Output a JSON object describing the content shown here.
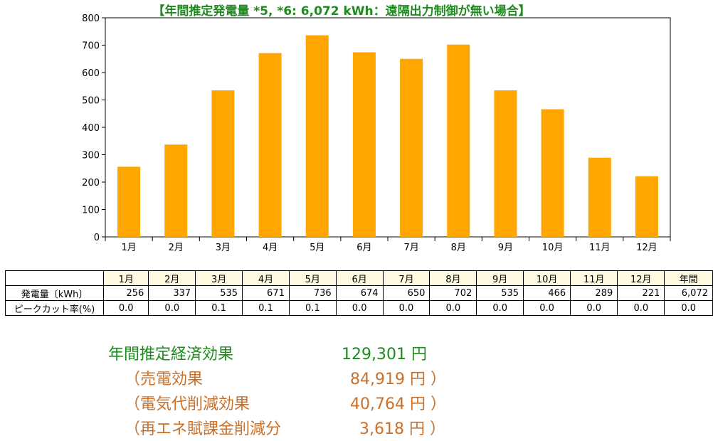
{
  "chart_data": {
    "type": "bar",
    "title": "【年間推定発電量 *5, *6:  6,072 kWh：遠隔出力制御が無い場合】",
    "categories": [
      "1月",
      "2月",
      "3月",
      "4月",
      "5月",
      "6月",
      "7月",
      "8月",
      "9月",
      "10月",
      "11月",
      "12月"
    ],
    "values": [
      256,
      337,
      535,
      671,
      736,
      674,
      650,
      702,
      535,
      466,
      289,
      221
    ],
    "ylim": [
      0,
      800
    ],
    "yticks": [
      0,
      100,
      200,
      300,
      400,
      500,
      600,
      700,
      800
    ],
    "bar_color": "#ffa600",
    "grid": false,
    "xlabel": "",
    "ylabel": ""
  },
  "table": {
    "headers": [
      "1月",
      "2月",
      "3月",
      "4月",
      "5月",
      "6月",
      "7月",
      "8月",
      "9月",
      "10月",
      "11月",
      "12月",
      "年間"
    ],
    "rows": [
      {
        "label": "発電量〔kWh〕",
        "cells": [
          "256",
          "337",
          "535",
          "671",
          "736",
          "674",
          "650",
          "702",
          "535",
          "466",
          "289",
          "221",
          "6,072"
        ]
      },
      {
        "label": "ピークカット率(%)",
        "cells": [
          "0.0",
          "0.0",
          "0.1",
          "0.1",
          "0.1",
          "0.0",
          "0.0",
          "0.0",
          "0.0",
          "0.0",
          "0.0",
          "0.0",
          "0.0"
        ]
      }
    ],
    "header_bg": "#fffbe1"
  },
  "economics": {
    "main_label": "年間推定経済効果",
    "main_value": "129,301 円",
    "items": [
      {
        "label": "（売電効果",
        "value": "84,919 円 ）"
      },
      {
        "label": "（電気代削減効果",
        "value": "40,764 円 ）"
      },
      {
        "label": "（再エネ賦課金削減分",
        "value": "3,618 円 ）"
      }
    ],
    "main_color": "#1e8a1e",
    "sub_color": "#c9702a"
  }
}
